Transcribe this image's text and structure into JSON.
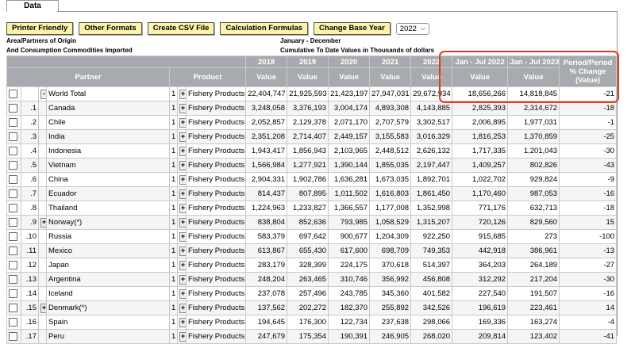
{
  "tab_label": "Data",
  "toolbar": {
    "buttons": [
      "Printer Friendly",
      "Other Formats",
      "Create CSV File",
      "Calculation Formulas",
      "Change Base Year"
    ],
    "year_selected": "2022"
  },
  "meta": {
    "left_line1": "Area/Partners of Origin",
    "left_line2": "And Consumption Commodities Imported",
    "right_line1": "January - December",
    "right_line2": "Cumulative To Date Values in Thousands of dollars"
  },
  "header": {
    "years": [
      "2018",
      "2019",
      "2020",
      "2021",
      "2022",
      "Jan - Jul 2022",
      "Jan - Jul 2023"
    ],
    "partner": "Partner",
    "product": "Product",
    "value": "Value",
    "change": "Period/Period % Change (Value)"
  },
  "rows": [
    {
      "idx": "",
      "exp": "-",
      "partner": "World Total",
      "lvl": "1",
      "plus": "+",
      "product": "Fishery Products",
      "v": [
        "22,404,747",
        "21,925,593",
        "21,423,197",
        "27,947,031",
        "29,672,934",
        "18,656,266",
        "14,818,845"
      ],
      "chg": "-21"
    },
    {
      "idx": ".1",
      "exp": "",
      "partner": "Canada",
      "lvl": "1",
      "plus": "+",
      "product": "Fishery Products",
      "v": [
        "3,248,058",
        "3,376,193",
        "3,004,174",
        "4,893,308",
        "4,143,885",
        "2,825,393",
        "2,314,672"
      ],
      "chg": "-18"
    },
    {
      "idx": ".2",
      "exp": "",
      "partner": "Chile",
      "lvl": "1",
      "plus": "+",
      "product": "Fishery Products",
      "v": [
        "2,052,857",
        "2,129,378",
        "2,071,170",
        "2,707,579",
        "3,302,517",
        "2,006,895",
        "1,977,031"
      ],
      "chg": "-1"
    },
    {
      "idx": ".3",
      "exp": "",
      "partner": "India",
      "lvl": "1",
      "plus": "+",
      "product": "Fishery Products",
      "v": [
        "2,351,208",
        "2,714,407",
        "2,449,157",
        "3,155,583",
        "3,016,329",
        "1,816,253",
        "1,370,859"
      ],
      "chg": "-25"
    },
    {
      "idx": ".4",
      "exp": "",
      "partner": "Indonesia",
      "lvl": "1",
      "plus": "+",
      "product": "Fishery Products",
      "v": [
        "1,943,417",
        "1,856,943",
        "2,103,965",
        "2,448,512",
        "2,626,132",
        "1,717,335",
        "1,201,043"
      ],
      "chg": "-30"
    },
    {
      "idx": ".5",
      "exp": "",
      "partner": "Vietnam",
      "lvl": "1",
      "plus": "+",
      "product": "Fishery Products",
      "v": [
        "1,566,984",
        "1,277,921",
        "1,390,144",
        "1,855,035",
        "2,197,447",
        "1,409,257",
        "802,826"
      ],
      "chg": "-43"
    },
    {
      "idx": ".6",
      "exp": "",
      "partner": "China",
      "lvl": "1",
      "plus": "+",
      "product": "Fishery Products",
      "v": [
        "2,904,331",
        "1,902,786",
        "1,636,281",
        "1,673,035",
        "1,892,701",
        "1,022,702",
        "929,824"
      ],
      "chg": "-9"
    },
    {
      "idx": ".7",
      "exp": "",
      "partner": "Ecuador",
      "lvl": "1",
      "plus": "+",
      "product": "Fishery Products",
      "v": [
        "814,437",
        "807,895",
        "1,011,502",
        "1,616,803",
        "1,861,450",
        "1,170,460",
        "987,053"
      ],
      "chg": "-16"
    },
    {
      "idx": ".8",
      "exp": "",
      "partner": "Thailand",
      "lvl": "1",
      "plus": "+",
      "product": "Fishery Products",
      "v": [
        "1,224,963",
        "1,233,827",
        "1,366,557",
        "1,177,008",
        "1,352,998",
        "771,176",
        "632,713"
      ],
      "chg": "-18"
    },
    {
      "idx": ".9",
      "exp": "+",
      "partner": "Norway(*)",
      "lvl": "1",
      "plus": "+",
      "product": "Fishery Products",
      "v": [
        "838,804",
        "852,636",
        "793,985",
        "1,058,529",
        "1,315,207",
        "720,126",
        "829,560"
      ],
      "chg": "15"
    },
    {
      "idx": ".10",
      "exp": "",
      "partner": "Russia",
      "lvl": "1",
      "plus": "+",
      "product": "Fishery Products",
      "v": [
        "583,379",
        "697,642",
        "900,677",
        "1,204,309",
        "922,250",
        "915,685",
        "273"
      ],
      "chg": "-100"
    },
    {
      "idx": ".11",
      "exp": "",
      "partner": "Mexico",
      "lvl": "1",
      "plus": "+",
      "product": "Fishery Products",
      "v": [
        "613,867",
        "655,430",
        "617,600",
        "698,709",
        "749,353",
        "442,918",
        "386,961"
      ],
      "chg": "-13"
    },
    {
      "idx": ".12",
      "exp": "",
      "partner": "Japan",
      "lvl": "1",
      "plus": "+",
      "product": "Fishery Products",
      "v": [
        "283,179",
        "328,399",
        "224,175",
        "370,618",
        "514,397",
        "364,203",
        "264,189"
      ],
      "chg": "-27"
    },
    {
      "idx": ".13",
      "exp": "",
      "partner": "Argentina",
      "lvl": "1",
      "plus": "+",
      "product": "Fishery Products",
      "v": [
        "248,204",
        "263,465",
        "310,746",
        "356,992",
        "456,808",
        "312,292",
        "217,204"
      ],
      "chg": "-30"
    },
    {
      "idx": ".14",
      "exp": "",
      "partner": "Iceland",
      "lvl": "1",
      "plus": "+",
      "product": "Fishery Products",
      "v": [
        "237,078",
        "257,496",
        "243,785",
        "345,360",
        "401,582",
        "227,540",
        "191,507"
      ],
      "chg": "-16"
    },
    {
      "idx": ".15",
      "exp": "+",
      "partner": "Denmark(*)",
      "lvl": "1",
      "plus": "+",
      "product": "Fishery Products",
      "v": [
        "137,562",
        "202,272",
        "182,370",
        "255,892",
        "342,526",
        "196,619",
        "223,461"
      ],
      "chg": "14"
    },
    {
      "idx": ".16",
      "exp": "",
      "partner": "Spain",
      "lvl": "1",
      "plus": "+",
      "product": "Fishery Products",
      "v": [
        "194,645",
        "176,300",
        "122,734",
        "237,638",
        "298,066",
        "169,336",
        "163,274"
      ],
      "chg": "-4"
    },
    {
      "idx": ".17",
      "exp": "",
      "partner": "Peru",
      "lvl": "1",
      "plus": "+",
      "product": "Fishery Products",
      "v": [
        "247,679",
        "175,354",
        "190,391",
        "246,905",
        "268,020",
        "209,814",
        "123,402"
      ],
      "chg": "-41"
    }
  ]
}
